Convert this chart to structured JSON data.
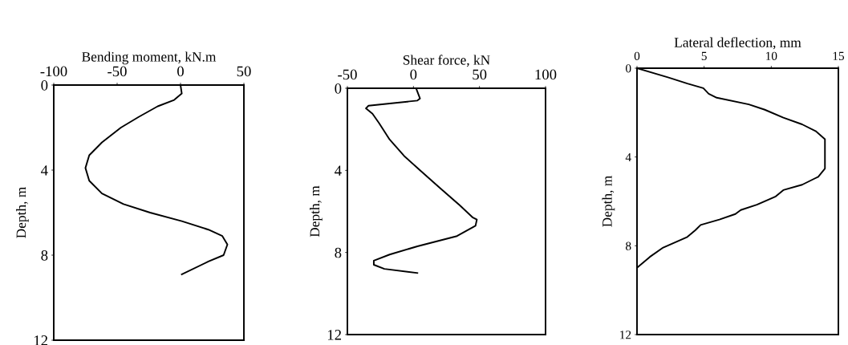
{
  "chart_data": [
    {
      "type": "line",
      "xlabel": "Bending moment, kN.m",
      "ylabel": "Depth, m",
      "xlim": [
        -100,
        50
      ],
      "xticks": [
        -100,
        -50,
        0,
        50
      ],
      "ylim": [
        12,
        0
      ],
      "yticks": [
        0,
        4,
        8,
        12
      ],
      "series": [
        {
          "color": "#000000",
          "x": [
            0,
            1,
            -5,
            -18,
            -33,
            -47,
            -62,
            -72,
            -75,
            -72,
            -62,
            -45,
            -24,
            1,
            22,
            33,
            37,
            34,
            22,
            1
          ],
          "values": [
            0,
            0.4,
            0.7,
            1.0,
            1.5,
            2.0,
            2.7,
            3.3,
            3.9,
            4.5,
            5.1,
            5.6,
            6.0,
            6.4,
            6.8,
            7.1,
            7.5,
            8.0,
            8.3,
            8.9
          ]
        }
      ]
    },
    {
      "type": "line",
      "xlabel": "Shear force, kN",
      "ylabel": "Depth, m",
      "xlim": [
        -50,
        100
      ],
      "xticks": [
        -50,
        0,
        50,
        100
      ],
      "ylim": [
        12,
        0
      ],
      "yticks": [
        0,
        4,
        8,
        12
      ],
      "series": [
        {
          "color": "#000000",
          "x": [
            2,
            5,
            3,
            -34,
            -36,
            -31,
            -26,
            -18,
            -7,
            5,
            19,
            35,
            45,
            48,
            47,
            33,
            3,
            -18,
            -30,
            -30,
            -22,
            3
          ],
          "values": [
            0,
            0.5,
            0.6,
            0.85,
            0.98,
            1.24,
            1.7,
            2.5,
            3.3,
            4.0,
            4.8,
            5.7,
            6.3,
            6.4,
            6.7,
            7.2,
            7.7,
            8.1,
            8.4,
            8.6,
            8.8,
            9.0
          ]
        }
      ]
    },
    {
      "type": "line",
      "xlabel": "Lateral deflection, mm",
      "ylabel": "Depth, m",
      "xlim": [
        0,
        15
      ],
      "xticks": [
        0,
        5,
        10,
        15
      ],
      "ylim": [
        12,
        0
      ],
      "yticks": [
        0,
        4,
        8,
        12
      ],
      "series": [
        {
          "color": "#000000",
          "x": [
            0,
            2.35,
            3.75,
            4.94,
            5.34,
            5.94,
            8.33,
            9.52,
            10.9,
            12.3,
            13.3,
            14.0,
            14.0,
            14.0,
            13.5,
            12.3,
            10.9,
            10.3,
            8.93,
            7.73,
            7.33,
            6.14,
            4.74,
            4.34,
            3.75,
            1.95,
            0.96,
            0
          ],
          "values": [
            0,
            0.42,
            0.69,
            0.9,
            1.15,
            1.33,
            1.63,
            1.87,
            2.23,
            2.53,
            2.83,
            3.2,
            4.16,
            4.52,
            4.89,
            5.25,
            5.49,
            5.79,
            6.15,
            6.39,
            6.57,
            6.82,
            7.06,
            7.3,
            7.6,
            8.08,
            8.5,
            8.99
          ]
        }
      ]
    }
  ]
}
